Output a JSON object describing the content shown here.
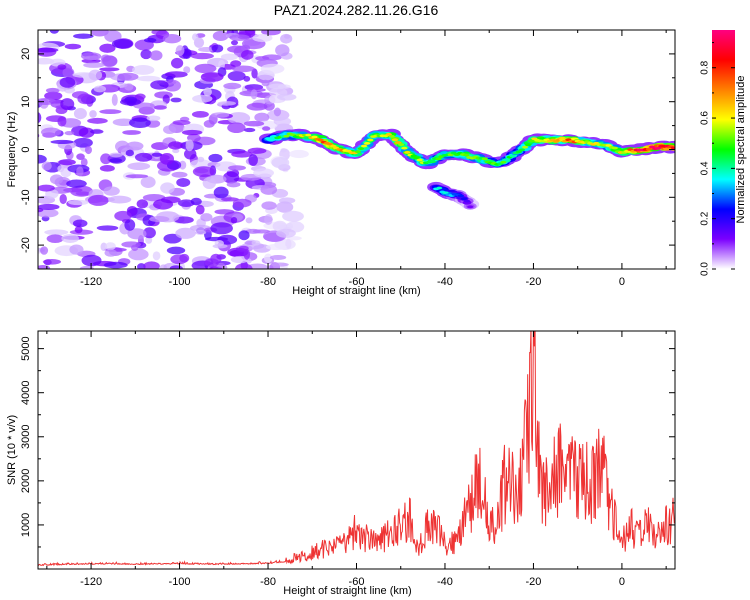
{
  "title": "PAZ1.2024.282.11.26.G16",
  "chart_data": [
    {
      "type": "heatmap",
      "xlabel": "Height of straight line (km)",
      "ylabel": "Frequency (Hz)",
      "xlim": [
        -132,
        12
      ],
      "ylim": [
        -25,
        25
      ],
      "x_ticks": [
        -120,
        -100,
        -80,
        -60,
        -40,
        -20,
        0
      ],
      "y_ticks": [
        -20,
        -10,
        0,
        10,
        20
      ],
      "colorbar": {
        "label": "Normalized spectral amplitude",
        "range": [
          0,
          0.95
        ],
        "ticks": [
          "0.0",
          "0.2",
          "0.4",
          "0.6",
          "0.8"
        ],
        "colors": [
          "#ffffff",
          "#7b00ff",
          "#0000ff",
          "#00ffff",
          "#00ff00",
          "#ffff00",
          "#ff8000",
          "#ff0000",
          "#ff0080"
        ]
      },
      "noise_region": [
        -132,
        -74
      ],
      "ridge": {
        "x": [
          -80,
          -76,
          -72,
          -68,
          -64,
          -60,
          -56,
          -52,
          -48,
          -44,
          -40,
          -36,
          -32,
          -28,
          -24,
          -20,
          -16,
          -12,
          -8,
          -4,
          0,
          4,
          8,
          12
        ],
        "frequency": [
          2,
          3,
          3,
          2,
          0,
          -1,
          3,
          3,
          -1,
          -3,
          -1,
          -1,
          -2,
          -3,
          -1,
          2,
          2,
          2,
          1.5,
          1,
          -0.5,
          0,
          0.5,
          0.5
        ],
        "amplitude": [
          0.35,
          0.45,
          0.55,
          0.7,
          0.65,
          0.55,
          0.5,
          0.6,
          0.55,
          0.5,
          0.45,
          0.5,
          0.5,
          0.45,
          0.4,
          0.6,
          0.65,
          0.75,
          0.6,
          0.5,
          0.6,
          0.85,
          0.9,
          0.75
        ]
      },
      "branch": {
        "x": [
          -42,
          -40,
          -38,
          -36,
          -34
        ],
        "frequency": [
          -8,
          -9,
          -9.5,
          -10,
          -12
        ],
        "amplitude": [
          0.3,
          0.35,
          0.3,
          0.2,
          0.1
        ]
      }
    },
    {
      "type": "line",
      "xlabel": "Height of straight line (km)",
      "ylabel": "SNR (10 * v/v)",
      "xlim": [
        -132,
        12
      ],
      "ylim": [
        0,
        5400
      ],
      "x_ticks": [
        -120,
        -100,
        -80,
        -60,
        -40,
        -20,
        0
      ],
      "y_ticks": [
        1000,
        2000,
        3000,
        4000,
        5000
      ],
      "color": "#ee3333",
      "series": [
        {
          "x": [
            -132,
            -124,
            -116,
            -108,
            -100,
            -92,
            -84,
            -80,
            -76,
            -72,
            -68,
            -64,
            -60,
            -56,
            -52,
            -48,
            -46,
            -44,
            -42,
            -40,
            -38,
            -36,
            -34,
            -32,
            -30,
            -28,
            -26,
            -24,
            -22,
            -21,
            -20,
            -19,
            -18,
            -16,
            -14,
            -12,
            -10,
            -8,
            -6,
            -5,
            -4,
            -2,
            0,
            2,
            4,
            6,
            8,
            10,
            12
          ],
          "values": [
            120,
            140,
            150,
            140,
            150,
            140,
            150,
            160,
            200,
            350,
            500,
            600,
            1000,
            700,
            900,
            1350,
            500,
            1200,
            1300,
            600,
            700,
            1100,
            1800,
            2400,
            1000,
            1300,
            2500,
            1800,
            3000,
            3800,
            5300,
            3200,
            1800,
            2200,
            2600,
            2400,
            2500,
            2300,
            2100,
            2800,
            2400,
            1400,
            700,
            1100,
            900,
            1200,
            900,
            1200,
            1400
          ]
        }
      ]
    }
  ]
}
